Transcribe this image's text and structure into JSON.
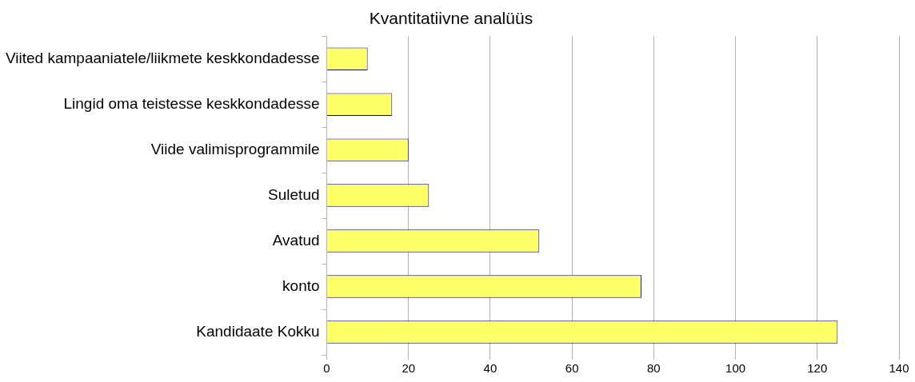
{
  "chart_data": {
    "type": "bar",
    "orientation": "horizontal",
    "title": "Kvantitatiivne analüüs",
    "categories": [
      "Viited kampaaniatele/liikmete keskkondadesse",
      "Lingid oma teistesse keskkondadesse",
      "Viide valimisprogrammile",
      "Suletud",
      "Avatud",
      "konto",
      "Kandidaate Kokku"
    ],
    "values": [
      10,
      16,
      20,
      25,
      52,
      77,
      125
    ],
    "color": "#ffff66",
    "xlim": [
      0,
      140
    ],
    "xticks": [
      0,
      20,
      40,
      60,
      80,
      100,
      120,
      140
    ],
    "grid": "x",
    "legend": false
  }
}
